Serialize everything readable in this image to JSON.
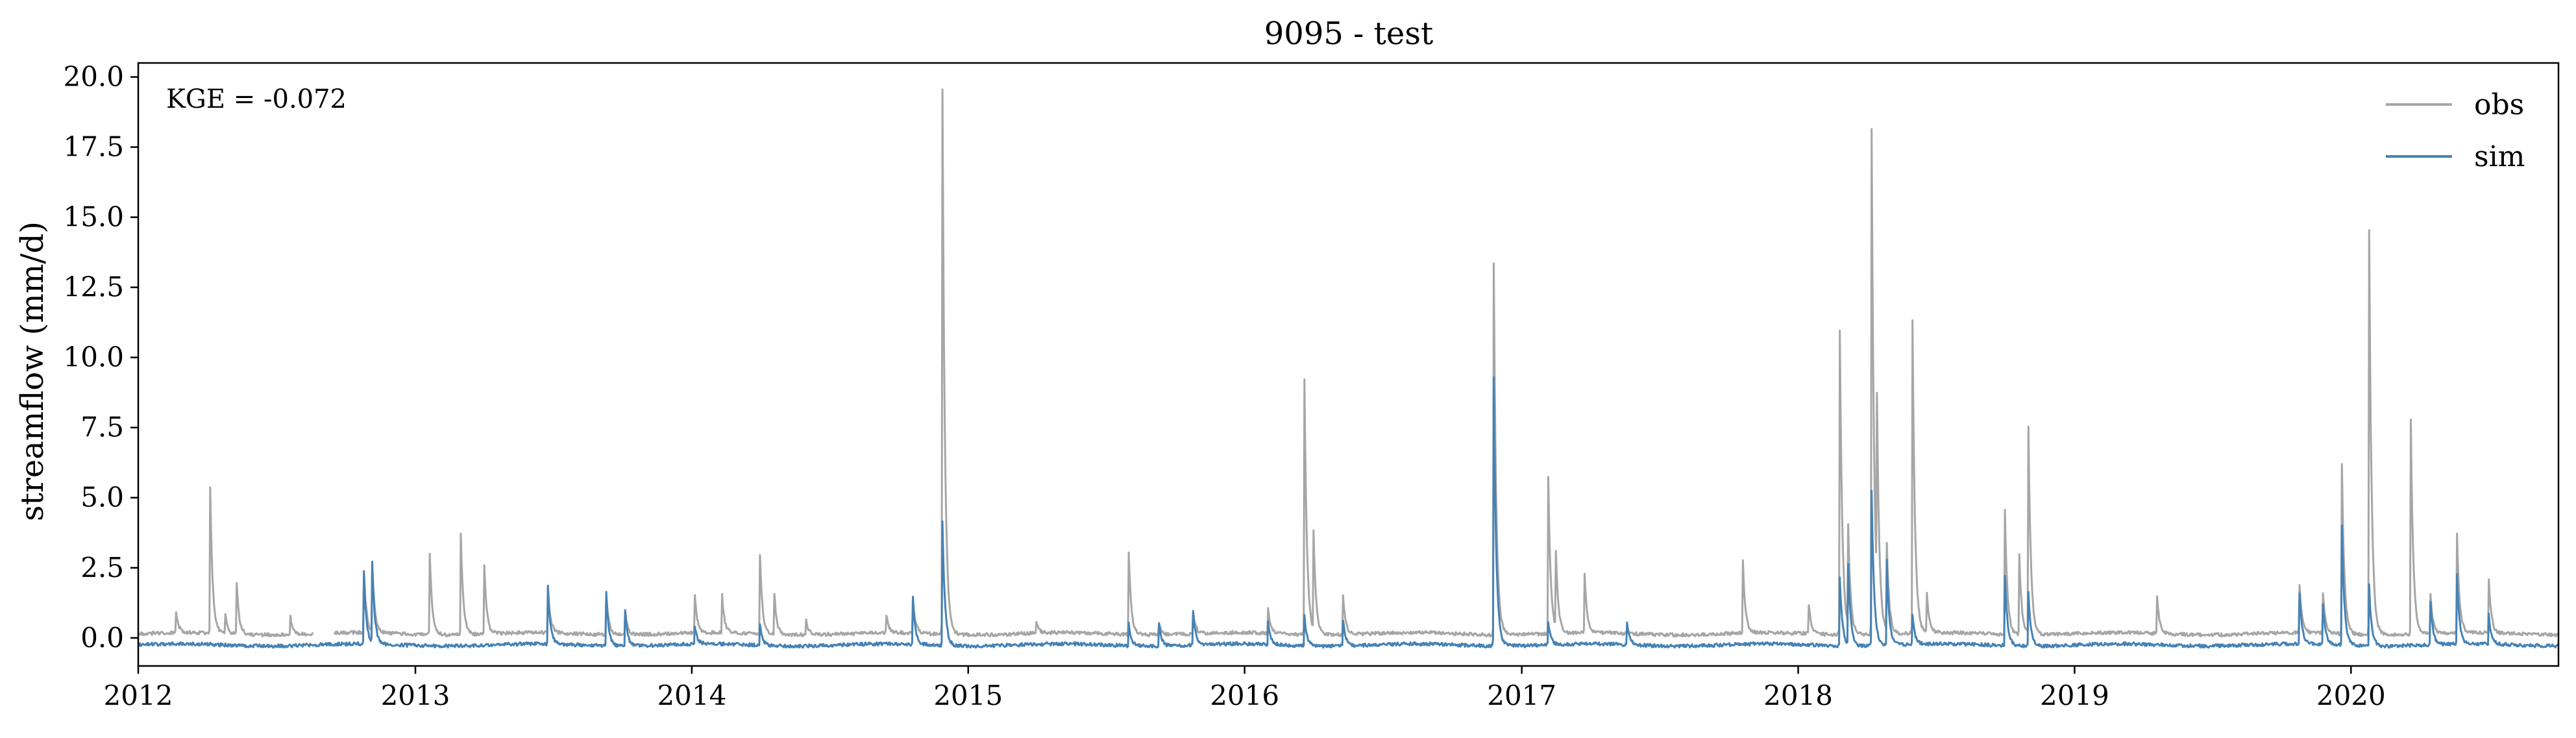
{
  "chart_data": {
    "type": "line",
    "title": "9095 - test",
    "xlabel": "",
    "ylabel": "streamflow (mm/d)",
    "annotation": "KGE = -0.072",
    "xlim": [
      "2012-01-01",
      "2020-10-01"
    ],
    "ylim": [
      -1.0,
      20.5
    ],
    "x_ticks": [
      "2012",
      "2013",
      "2014",
      "2015",
      "2016",
      "2017",
      "2018",
      "2019",
      "2020"
    ],
    "y_ticks": [
      "0.0",
      "2.5",
      "5.0",
      "7.5",
      "10.0",
      "12.5",
      "15.0",
      "17.5",
      "20.0"
    ],
    "y_tick_values": [
      0,
      2.5,
      5,
      7.5,
      10,
      12.5,
      15,
      17.5,
      20
    ],
    "grid": false,
    "legend_position": "top-right",
    "series": [
      {
        "name": "obs",
        "color": "#a6a6a6",
        "baseline": 0.15,
        "gaps": [
          [
            "2012-08-20",
            "2012-09-15"
          ]
        ],
        "peaks": [
          [
            "2012-02-20",
            0.9
          ],
          [
            "2012-04-05",
            5.4
          ],
          [
            "2012-04-25",
            0.8
          ],
          [
            "2012-05-10",
            2.0
          ],
          [
            "2012-07-20",
            0.8
          ],
          [
            "2012-10-25",
            2.4
          ],
          [
            "2012-11-05",
            2.6
          ],
          [
            "2013-01-20",
            3.0
          ],
          [
            "2013-03-02",
            3.7
          ],
          [
            "2013-04-02",
            2.6
          ],
          [
            "2013-06-25",
            1.8
          ],
          [
            "2013-09-10",
            1.6
          ],
          [
            "2013-10-05",
            1.0
          ],
          [
            "2014-01-05",
            1.5
          ],
          [
            "2014-02-10",
            1.5
          ],
          [
            "2014-04-01",
            3.0
          ],
          [
            "2014-04-20",
            1.6
          ],
          [
            "2014-06-01",
            0.7
          ],
          [
            "2014-09-15",
            0.8
          ],
          [
            "2014-10-20",
            1.4
          ],
          [
            "2014-11-28",
            19.6
          ],
          [
            "2015-04-01",
            0.6
          ],
          [
            "2015-08-01",
            3.1
          ],
          [
            "2015-09-10",
            0.6
          ],
          [
            "2015-10-25",
            1.0
          ],
          [
            "2016-02-01",
            1.0
          ],
          [
            "2016-03-20",
            9.3
          ],
          [
            "2016-04-01",
            3.7
          ],
          [
            "2016-05-10",
            1.6
          ],
          [
            "2016-11-25",
            13.4
          ],
          [
            "2017-02-05",
            5.7
          ],
          [
            "2017-02-15",
            2.9
          ],
          [
            "2017-03-25",
            2.2
          ],
          [
            "2017-10-20",
            2.7
          ],
          [
            "2018-01-15",
            1.2
          ],
          [
            "2018-02-25",
            11.0
          ],
          [
            "2018-03-08",
            3.8
          ],
          [
            "2018-04-08",
            18.2
          ],
          [
            "2018-04-15",
            6.7
          ],
          [
            "2018-04-28",
            3.3
          ],
          [
            "2018-06-01",
            11.3
          ],
          [
            "2018-06-20",
            1.5
          ],
          [
            "2018-10-01",
            4.6
          ],
          [
            "2018-10-20",
            3.0
          ],
          [
            "2018-11-01",
            7.5
          ],
          [
            "2019-04-20",
            1.5
          ],
          [
            "2019-10-25",
            1.9
          ],
          [
            "2019-11-25",
            1.6
          ],
          [
            "2019-12-20",
            6.2
          ],
          [
            "2020-01-25",
            14.6
          ],
          [
            "2020-03-20",
            7.8
          ],
          [
            "2020-04-15",
            1.5
          ],
          [
            "2020-05-20",
            3.7
          ],
          [
            "2020-07-01",
            2.1
          ]
        ]
      },
      {
        "name": "sim",
        "color": "#4682b4",
        "baseline": -0.25,
        "peaks": [
          [
            "2012-10-25",
            2.3
          ],
          [
            "2012-11-05",
            2.6
          ],
          [
            "2013-06-25",
            1.8
          ],
          [
            "2013-09-10",
            1.7
          ],
          [
            "2013-10-05",
            1.0
          ],
          [
            "2014-01-05",
            0.4
          ],
          [
            "2014-04-01",
            0.5
          ],
          [
            "2014-10-20",
            1.4
          ],
          [
            "2014-11-28",
            4.2
          ],
          [
            "2015-08-01",
            0.6
          ],
          [
            "2015-09-10",
            0.6
          ],
          [
            "2015-10-25",
            1.0
          ],
          [
            "2016-02-01",
            0.6
          ],
          [
            "2016-03-20",
            0.8
          ],
          [
            "2016-05-10",
            0.7
          ],
          [
            "2016-11-25",
            9.3
          ],
          [
            "2017-02-05",
            0.6
          ],
          [
            "2017-05-20",
            0.6
          ],
          [
            "2018-02-25",
            2.2
          ],
          [
            "2018-03-08",
            2.6
          ],
          [
            "2018-04-08",
            5.3
          ],
          [
            "2018-04-28",
            2.8
          ],
          [
            "2018-06-01",
            0.8
          ],
          [
            "2018-10-01",
            2.3
          ],
          [
            "2018-11-01",
            1.7
          ],
          [
            "2019-10-25",
            1.6
          ],
          [
            "2019-11-25",
            1.2
          ],
          [
            "2019-12-20",
            4.0
          ],
          [
            "2020-01-25",
            1.9
          ],
          [
            "2020-04-15",
            1.3
          ],
          [
            "2020-05-20",
            2.2
          ],
          [
            "2020-07-01",
            0.8
          ]
        ]
      }
    ]
  }
}
